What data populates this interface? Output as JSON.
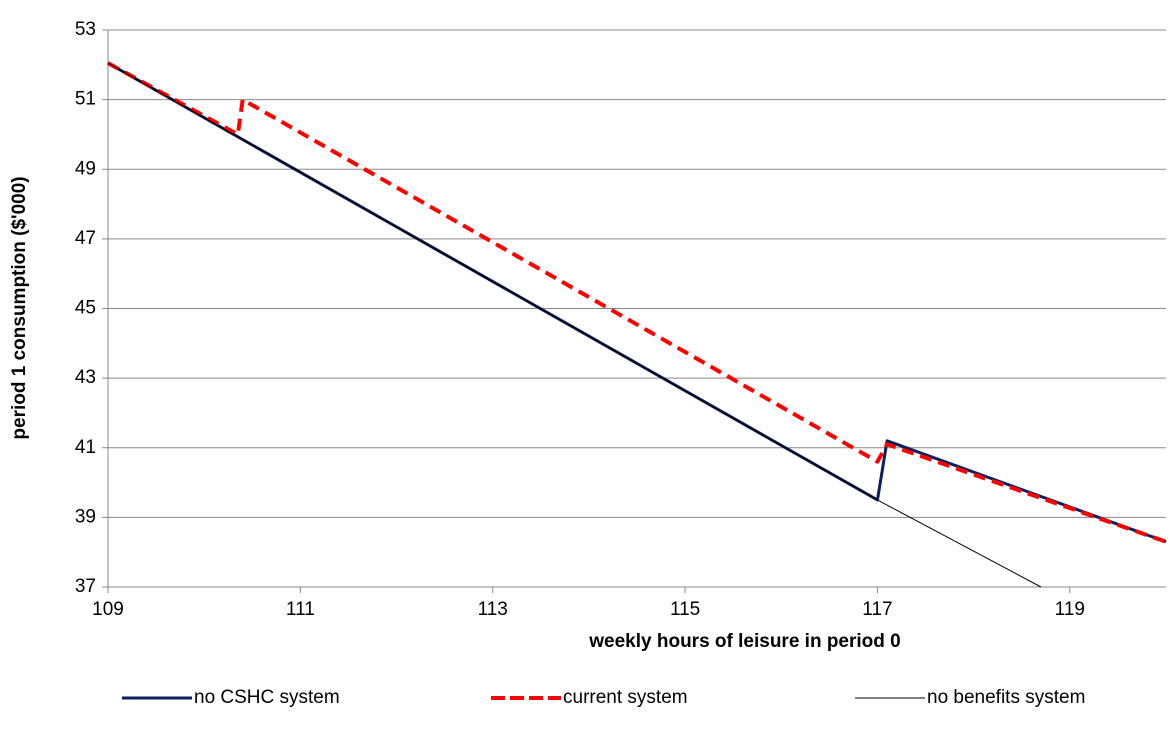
{
  "chart_data": {
    "type": "line",
    "xlabel": "weekly hours of leisure in period 0",
    "ylabel": "period 1 consumption ($'000)",
    "xlim": [
      109,
      120
    ],
    "xticks": [
      109,
      111,
      113,
      115,
      117,
      119
    ],
    "ylim": [
      37,
      53
    ],
    "yticks": [
      37,
      39,
      41,
      43,
      45,
      47,
      49,
      51,
      53
    ],
    "grid": true,
    "legend": "bottom",
    "series": [
      {
        "name": "no CSHC system",
        "color": "#0d1f5c",
        "style": "solid",
        "x": [
          109,
          117,
          117.1,
          120
        ],
        "values": [
          52.05,
          39.5,
          41.2,
          38.3
        ]
      },
      {
        "name": "current system",
        "color": "#ff0000",
        "style": "dashed",
        "x": [
          109,
          110.35,
          110.4,
          117,
          117.1,
          120
        ],
        "values": [
          52.05,
          50.0,
          51.0,
          40.6,
          41.1,
          38.3
        ]
      },
      {
        "name": "no benefits system",
        "color": "#000000",
        "style": "thin",
        "x": [
          109,
          117,
          118.7
        ],
        "values": [
          52.05,
          39.5,
          37
        ]
      }
    ]
  }
}
